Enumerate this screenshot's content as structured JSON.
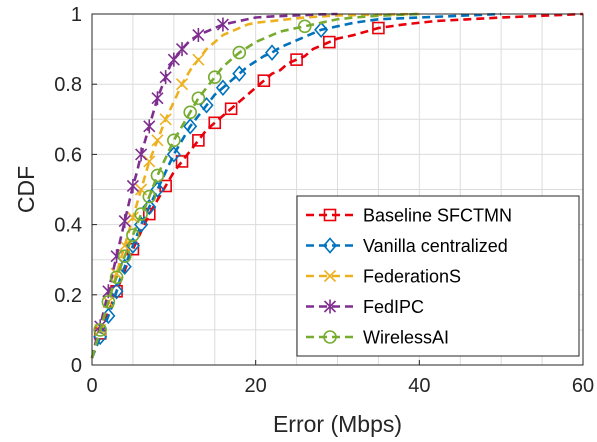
{
  "chart_data": {
    "type": "line",
    "title": "",
    "xlabel": "Error (Mbps)",
    "ylabel": "CDF",
    "xlim": [
      0,
      60
    ],
    "ylim": [
      0,
      1
    ],
    "x_ticks": [
      0,
      20,
      40,
      60
    ],
    "y_ticks": [
      0,
      0.2,
      0.4,
      0.6,
      0.8,
      1
    ],
    "grid": true,
    "legend_position": "bottom-right",
    "series": [
      {
        "name": "Baseline SFCTMN",
        "color": "#e8000b",
        "marker": "square",
        "x": [
          0,
          0.5,
          1,
          1.5,
          2,
          2.5,
          3,
          3.5,
          4,
          4.5,
          5,
          6,
          7,
          8,
          9,
          10,
          11,
          12,
          13,
          14,
          15,
          16,
          17,
          18,
          19,
          20,
          21,
          22,
          23,
          24,
          25,
          26,
          27,
          28,
          29,
          30,
          32,
          35,
          38,
          42,
          46,
          50,
          55,
          60
        ],
        "y": [
          0.02,
          0.06,
          0.09,
          0.12,
          0.15,
          0.18,
          0.21,
          0.24,
          0.27,
          0.3,
          0.33,
          0.38,
          0.43,
          0.47,
          0.51,
          0.55,
          0.58,
          0.61,
          0.64,
          0.67,
          0.69,
          0.71,
          0.73,
          0.75,
          0.77,
          0.79,
          0.81,
          0.83,
          0.84,
          0.86,
          0.87,
          0.88,
          0.9,
          0.91,
          0.92,
          0.93,
          0.94,
          0.96,
          0.97,
          0.98,
          0.985,
          0.99,
          0.995,
          1.0
        ],
        "marker_x": [
          1,
          3,
          5,
          7,
          9,
          11,
          13,
          15,
          17,
          21,
          25,
          29,
          35
        ]
      },
      {
        "name": "Vanilla centralized",
        "color": "#0072bd",
        "marker": "diamond",
        "x": [
          0,
          0.5,
          1,
          1.5,
          2,
          2.5,
          3,
          3.5,
          4,
          4.5,
          5,
          6,
          7,
          8,
          9,
          10,
          11,
          12,
          13,
          14,
          15,
          16,
          17,
          18,
          19,
          20,
          21,
          22,
          23,
          24,
          25,
          26,
          27,
          28,
          29,
          30,
          32,
          35,
          40,
          45,
          50
        ],
        "y": [
          0.02,
          0.05,
          0.08,
          0.11,
          0.14,
          0.17,
          0.21,
          0.25,
          0.28,
          0.31,
          0.34,
          0.4,
          0.45,
          0.5,
          0.55,
          0.6,
          0.64,
          0.68,
          0.71,
          0.74,
          0.77,
          0.79,
          0.81,
          0.83,
          0.85,
          0.865,
          0.88,
          0.89,
          0.905,
          0.915,
          0.925,
          0.935,
          0.945,
          0.955,
          0.96,
          0.965,
          0.975,
          0.985,
          0.99,
          0.995,
          1.0
        ],
        "marker_x": [
          1,
          2,
          3,
          4,
          5,
          6,
          7,
          8,
          10,
          12,
          14,
          16,
          18,
          22,
          28
        ]
      },
      {
        "name": "FederationS",
        "color": "#edb120",
        "marker": "x",
        "x": [
          0,
          0.5,
          1,
          1.5,
          2,
          2.5,
          3,
          3.5,
          4,
          4.5,
          5,
          5.5,
          6,
          6.5,
          7,
          7.5,
          8,
          8.5,
          9,
          10,
          11,
          12,
          13,
          14,
          15,
          16,
          17,
          18,
          19,
          20,
          22,
          24,
          26,
          28,
          30,
          35,
          40
        ],
        "y": [
          0.02,
          0.06,
          0.1,
          0.14,
          0.18,
          0.22,
          0.26,
          0.3,
          0.34,
          0.38,
          0.42,
          0.46,
          0.5,
          0.54,
          0.58,
          0.61,
          0.64,
          0.67,
          0.7,
          0.75,
          0.8,
          0.84,
          0.87,
          0.9,
          0.92,
          0.94,
          0.95,
          0.96,
          0.97,
          0.975,
          0.98,
          0.985,
          0.99,
          0.993,
          0.996,
          0.998,
          1.0
        ],
        "marker_x": [
          1,
          2,
          3,
          4,
          5,
          6,
          7,
          8,
          9,
          11,
          13
        ]
      },
      {
        "name": "FedIPC",
        "color": "#7e2f8e",
        "marker": "asterisk",
        "x": [
          0,
          0.5,
          1,
          1.5,
          2,
          2.5,
          3,
          3.5,
          4,
          4.5,
          5,
          5.5,
          6,
          6.5,
          7,
          7.5,
          8,
          8.5,
          9,
          9.5,
          10,
          11,
          12,
          13,
          14,
          15,
          16,
          17,
          18,
          19,
          20,
          22,
          24,
          26,
          28,
          30
        ],
        "y": [
          0.02,
          0.07,
          0.11,
          0.16,
          0.21,
          0.26,
          0.31,
          0.36,
          0.41,
          0.46,
          0.51,
          0.55,
          0.6,
          0.64,
          0.68,
          0.72,
          0.76,
          0.79,
          0.82,
          0.85,
          0.87,
          0.9,
          0.925,
          0.94,
          0.95,
          0.96,
          0.97,
          0.975,
          0.98,
          0.985,
          0.99,
          0.993,
          0.995,
          0.997,
          0.999,
          1.0
        ],
        "marker_x": [
          1,
          2,
          3,
          4,
          5,
          6,
          7,
          8,
          9,
          10,
          11,
          13,
          16
        ]
      },
      {
        "name": "WirelessAI",
        "color": "#77ac30",
        "marker": "circle",
        "x": [
          0,
          0.5,
          1,
          1.5,
          2,
          2.5,
          3,
          3.5,
          4,
          4.5,
          5,
          5.5,
          6,
          6.5,
          7,
          7.5,
          8,
          9,
          10,
          11,
          12,
          13,
          14,
          15,
          16,
          17,
          18,
          19,
          20,
          21,
          22,
          23,
          24,
          25,
          26,
          28,
          30,
          32,
          35,
          40
        ],
        "y": [
          0.02,
          0.06,
          0.1,
          0.14,
          0.18,
          0.22,
          0.25,
          0.28,
          0.31,
          0.34,
          0.37,
          0.4,
          0.43,
          0.45,
          0.48,
          0.51,
          0.54,
          0.59,
          0.64,
          0.68,
          0.72,
          0.76,
          0.79,
          0.82,
          0.85,
          0.87,
          0.89,
          0.905,
          0.92,
          0.93,
          0.94,
          0.95,
          0.955,
          0.96,
          0.965,
          0.975,
          0.985,
          0.99,
          0.995,
          1.0
        ],
        "marker_x": [
          1,
          2,
          3,
          4,
          5,
          6,
          7,
          8,
          10,
          12,
          13,
          15,
          18,
          26
        ]
      }
    ]
  }
}
